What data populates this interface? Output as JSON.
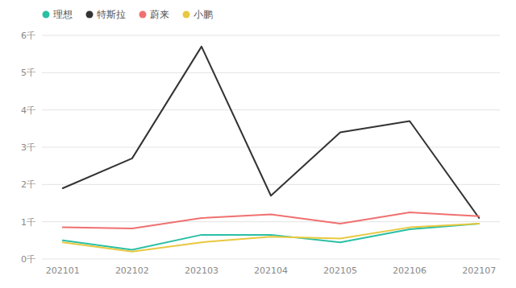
{
  "chart_data": {
    "type": "line",
    "categories": [
      "202101",
      "202102",
      "202103",
      "202104",
      "202105",
      "202106",
      "202107"
    ],
    "series": [
      {
        "name": "理想",
        "color": "#2abfa4",
        "values": [
          500,
          250,
          650,
          650,
          450,
          800,
          950
        ]
      },
      {
        "name": "特斯拉",
        "color": "#333333",
        "values": [
          1900,
          2700,
          5700,
          1700,
          3400,
          3700,
          1100
        ]
      },
      {
        "name": "蔚来",
        "color": "#f07070",
        "values": [
          850,
          820,
          1100,
          1200,
          950,
          1250,
          1150
        ]
      },
      {
        "name": "小鹏",
        "color": "#e8c840",
        "values": [
          450,
          200,
          450,
          600,
          550,
          850,
          950
        ]
      }
    ],
    "ylim": [
      0,
      6000
    ],
    "yticks": [
      {
        "value": 0,
        "label": "0千"
      },
      {
        "value": 1000,
        "label": "1千"
      },
      {
        "value": 2000,
        "label": "2千"
      },
      {
        "value": 3000,
        "label": "3千"
      },
      {
        "value": 4000,
        "label": "4千"
      },
      {
        "value": 5000,
        "label": "5千"
      },
      {
        "value": 6000,
        "label": "6千"
      }
    ],
    "grid": true,
    "legend": "top-left"
  }
}
